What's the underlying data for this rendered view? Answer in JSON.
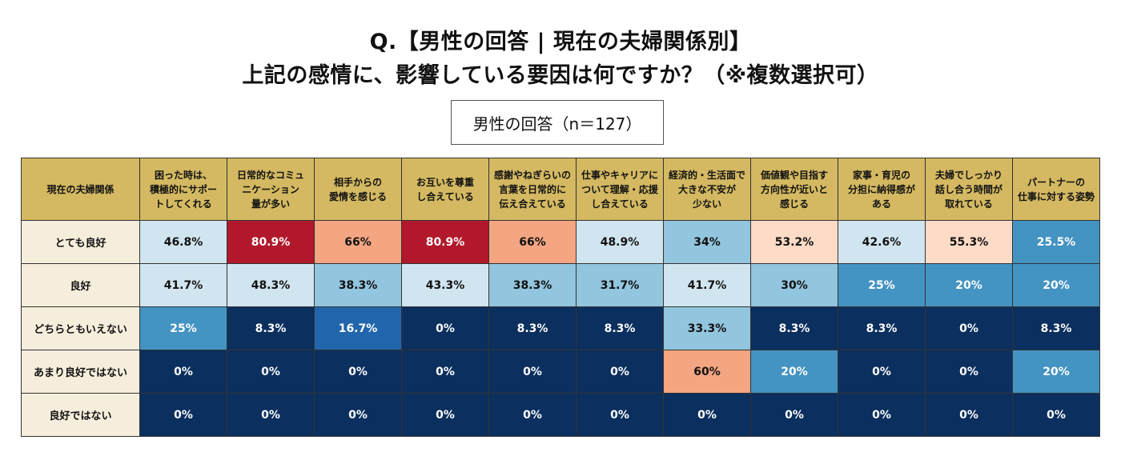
{
  "title": {
    "line1": "Q.【男性の回答 | 現在の夫婦関係別】",
    "line2": "上記の感情に、影響している要因は何ですか？（※複数選択可）"
  },
  "sample_label": "男性の回答（n＝127）",
  "chart_data": {
    "type": "heatmap",
    "corner_label": "現在の夫婦関係",
    "columns": [
      "困った時は、積極的にサポートしてくれる",
      "日常的なコミュニケーション量が多い",
      "相手からの愛情を感じる",
      "お互いを尊重し合えている",
      "感謝やねぎらいの言葉を日常的に伝え合えている",
      "仕事やキャリアについて理解・応援し合えている",
      "経済的・生活面で大きな不安が少ない",
      "価値観や目指す方向性が近いと感じる",
      "家事・育児の分担に納得感がある",
      "夫婦でしっかり話し合う時間が取れている",
      "パートナーの仕事に対する姿勢"
    ],
    "columns_display": [
      [
        "困った時は、",
        "積極的にサポー",
        "トしてくれる"
      ],
      [
        "日常的なコミュ",
        "ニケーション",
        "量が多い"
      ],
      [
        "相手からの",
        "愛情を感じる"
      ],
      [
        "お互いを尊重",
        "し合えている"
      ],
      [
        "感謝やねぎらいの",
        "言葉を日常的に",
        "伝え合えている"
      ],
      [
        "仕事やキャリアに",
        "ついて理解・応援",
        "し合えている"
      ],
      [
        "経済的・生活面で",
        "大きな不安が",
        "少ない"
      ],
      [
        "価値観や目指す",
        "方向性が近いと",
        "感じる"
      ],
      [
        "家事・育児の",
        "分担に納得感が",
        "ある"
      ],
      [
        "夫婦でしっかり",
        "話し合う時間が",
        "取れている"
      ],
      [
        "パートナーの",
        "仕事に対する姿勢"
      ]
    ],
    "rows": [
      "とても良好",
      "良好",
      "どちらともいえない",
      "あまり良好ではない",
      "良好ではない"
    ],
    "values": [
      [
        46.8,
        80.9,
        66,
        80.9,
        66,
        48.9,
        34,
        53.2,
        42.6,
        55.3,
        25.5
      ],
      [
        41.7,
        48.3,
        38.3,
        43.3,
        38.3,
        31.7,
        41.7,
        30,
        25,
        20,
        20
      ],
      [
        25,
        8.3,
        16.7,
        0,
        8.3,
        8.3,
        33.3,
        8.3,
        8.3,
        0,
        8.3
      ],
      [
        0,
        0,
        0,
        0,
        0,
        0,
        60,
        20,
        0,
        0,
        20
      ],
      [
        0,
        0,
        0,
        0,
        0,
        0,
        0,
        0,
        0,
        0,
        0
      ]
    ],
    "unit": "%",
    "color_scale": [
      "#0b2f5e",
      "#2166ac",
      "#4393c3",
      "#92c5de",
      "#d1e5f0",
      "#fddbc7",
      "#f4a582",
      "#b2182b"
    ],
    "header_color": "#d4b962",
    "row_label_color": "#f6eedc"
  }
}
